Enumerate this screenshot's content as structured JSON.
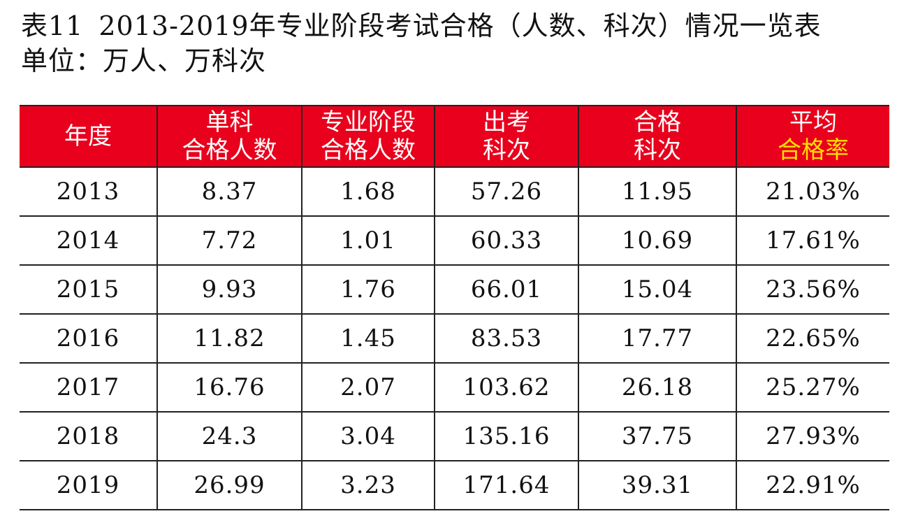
{
  "title": {
    "table_no": "表11",
    "text": "2013-2019年专业阶段考试合格（人数、科次）情况一览表",
    "unit": "单位：万人、万科次"
  },
  "colors": {
    "header_bg": "#e8001c",
    "header_text": "#ffffff",
    "highlight_text": "#ffdf00",
    "grid": "#222222"
  },
  "chart_data": {
    "type": "table",
    "columns": [
      {
        "line1": "年度",
        "line2": "",
        "highlight_line2": false
      },
      {
        "line1": "单科",
        "line2": "合格人数",
        "highlight_line2": false
      },
      {
        "line1": "专业阶段",
        "line2": "合格人数",
        "highlight_line2": false
      },
      {
        "line1": "出考",
        "line2": "科次",
        "highlight_line2": false
      },
      {
        "line1": "合格",
        "line2": "科次",
        "highlight_line2": false
      },
      {
        "line1": "平均",
        "line2": "合格率",
        "highlight_line2": true
      }
    ],
    "rows": [
      [
        "2013",
        "8.37",
        "1.68",
        "57.26",
        "11.95",
        "21.03%"
      ],
      [
        "2014",
        "7.72",
        "1.01",
        "60.33",
        "10.69",
        "17.61%"
      ],
      [
        "2015",
        "9.93",
        "1.76",
        "66.01",
        "15.04",
        "23.56%"
      ],
      [
        "2016",
        "11.82",
        "1.45",
        "83.53",
        "17.77",
        "22.65%"
      ],
      [
        "2017",
        "16.76",
        "2.07",
        "103.62",
        "26.18",
        "25.27%"
      ],
      [
        "2018",
        "24.3",
        "3.04",
        "135.16",
        "37.75",
        "27.93%"
      ],
      [
        "2019",
        "26.99",
        "3.23",
        "171.64",
        "39.31",
        "22.91%"
      ]
    ]
  }
}
